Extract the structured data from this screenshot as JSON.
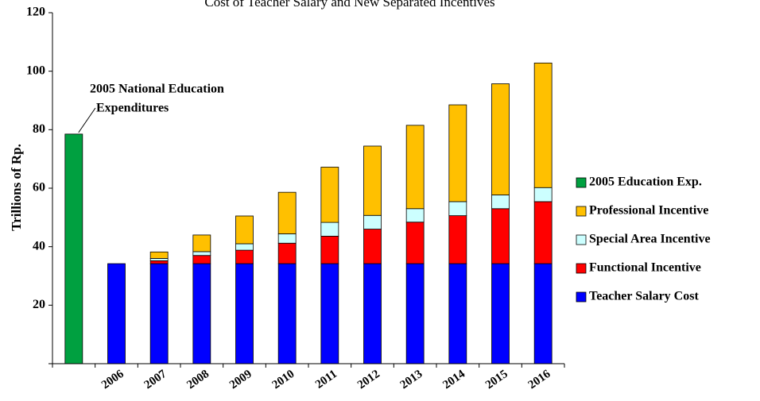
{
  "chart_data": {
    "type": "bar",
    "stacked": true,
    "title": "Cost of Teacher Salary and New Separated Incentives",
    "xlabel": "",
    "ylabel": "Trillions of Rp.",
    "ylim": [
      0,
      120
    ],
    "yticks": [
      "",
      "20",
      "40",
      "60",
      "80",
      "100",
      "120"
    ],
    "ytick_values": [
      0,
      20,
      40,
      60,
      80,
      100,
      120
    ],
    "categories": [
      "",
      "2006",
      "2007",
      "2008",
      "2009",
      "2010",
      "2011",
      "2012",
      "2013",
      "2014",
      "2015",
      "2016"
    ],
    "series": [
      {
        "name": "Teacher Salary Cost",
        "color": "#0000ff",
        "values": [
          0,
          34.2,
          34.2,
          34.2,
          34.2,
          34.2,
          34.2,
          34.2,
          34.2,
          34.2,
          34.2,
          34.2
        ]
      },
      {
        "name": "Functional Incentive",
        "color": "#ff0000",
        "values": [
          0,
          0,
          1.0,
          2.8,
          4.6,
          7.0,
          9.4,
          11.8,
          14.2,
          16.4,
          18.8,
          21.2
        ]
      },
      {
        "name": "Special Area Incentive",
        "color": "#ccffff",
        "values": [
          0,
          0,
          0.8,
          1.3,
          2.2,
          3.2,
          4.7,
          4.7,
          4.6,
          4.8,
          4.7,
          4.8
        ]
      },
      {
        "name": "Professional Incentive",
        "color": "#ffc000",
        "values": [
          0,
          0,
          2.2,
          5.7,
          9.5,
          14.2,
          18.9,
          23.7,
          28.5,
          33.1,
          38.0,
          42.6
        ]
      },
      {
        "name": "2005 Education Exp.",
        "color": "#00a040",
        "values": [
          78.5,
          0,
          0,
          0,
          0,
          0,
          0,
          0,
          0,
          0,
          0,
          0
        ]
      }
    ],
    "legend_order": [
      "2005 Education Exp.",
      "Professional Incentive",
      "Special Area Incentive",
      "Functional Incentive",
      "Teacher Salary Cost"
    ],
    "legend_position": "right",
    "grid": false,
    "annotation": {
      "lines": [
        "2005 National Education",
        "Expenditures"
      ],
      "target_category": ""
    }
  }
}
